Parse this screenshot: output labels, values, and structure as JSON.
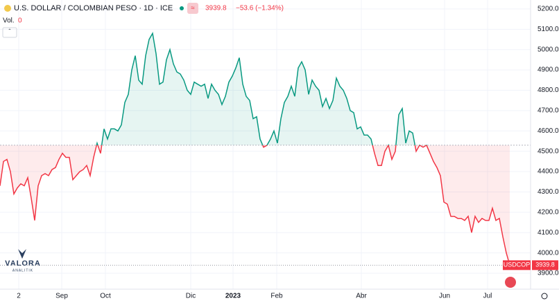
{
  "chart_data": {
    "type": "line",
    "title": "U.S. DOLLAR / COLOMBIAN PESO · 1D · ICE",
    "change": "−53.6 (−1.34%)",
    "volume_label": "Vol.",
    "volume": "0",
    "symbol": "USDCOP",
    "brand": "VALORA",
    "brand_sub": "ANALITIK",
    "baseline": 4530,
    "x": [
      0,
      1,
      2,
      3,
      4,
      5,
      6,
      7,
      8,
      9,
      10,
      11,
      12,
      13,
      14,
      15,
      16,
      17,
      18,
      19,
      20,
      21,
      22,
      23,
      24,
      25,
      26,
      27,
      28,
      29,
      30,
      31,
      32,
      33,
      34,
      35,
      36,
      37,
      38,
      39,
      40,
      41,
      42,
      43,
      44,
      45,
      46,
      47,
      48,
      49,
      50,
      51,
      52,
      53,
      54,
      55,
      56,
      57,
      58,
      59,
      60,
      61,
      62,
      63,
      64,
      65,
      66,
      67,
      68,
      69,
      70,
      71,
      72,
      73,
      74,
      75,
      76,
      77,
      78,
      79,
      80,
      81,
      82,
      83,
      84,
      85,
      86,
      87,
      88,
      89,
      90,
      91,
      92,
      93,
      94,
      95,
      96,
      97,
      98,
      99,
      100,
      101,
      102,
      103,
      104,
      105,
      106,
      107,
      108,
      109,
      110,
      111,
      112,
      113,
      114,
      115,
      116,
      117,
      118,
      119,
      120,
      121,
      122,
      123,
      124,
      125,
      126,
      127,
      128,
      129,
      130,
      131,
      132,
      133,
      134,
      135,
      136,
      137,
      138,
      139,
      140,
      141,
      142,
      143,
      144,
      145,
      146,
      147
    ],
    "series": [
      {
        "name": "USDCOP",
        "color_up": "#089981",
        "color_down": "#f23645",
        "values": [
          4330,
          4450,
          4460,
          4400,
          4290,
          4320,
          4340,
          4330,
          4370,
          4270,
          4160,
          4330,
          4380,
          4390,
          4380,
          4410,
          4420,
          4460,
          4490,
          4470,
          4470,
          4360,
          4380,
          4400,
          4410,
          4430,
          4380,
          4470,
          4540,
          4490,
          4610,
          4560,
          4610,
          4610,
          4600,
          4630,
          4740,
          4780,
          4900,
          4970,
          4850,
          4830,
          4970,
          5050,
          5080,
          4980,
          4830,
          4840,
          4950,
          5000,
          4930,
          4890,
          4880,
          4850,
          4800,
          4780,
          4840,
          4830,
          4820,
          4830,
          4760,
          4830,
          4800,
          4780,
          4730,
          4770,
          4840,
          4870,
          4910,
          4960,
          4830,
          4770,
          4750,
          4660,
          4670,
          4560,
          4520,
          4530,
          4560,
          4600,
          4540,
          4660,
          4740,
          4770,
          4820,
          4770,
          4910,
          4940,
          4900,
          4780,
          4850,
          4820,
          4800,
          4720,
          4760,
          4710,
          4750,
          4860,
          4820,
          4800,
          4760,
          4700,
          4690,
          4610,
          4620,
          4580,
          4580,
          4560,
          4490,
          4430,
          4430,
          4500,
          4530,
          4460,
          4500,
          4680,
          4710,
          4540,
          4600,
          4590,
          4500,
          4530,
          4520,
          4530,
          4490,
          4450,
          4420,
          4380,
          4250,
          4240,
          4180,
          4180,
          4170,
          4170,
          4160,
          4180,
          4100,
          4180,
          4150,
          4170,
          4160,
          4160,
          4220,
          4160,
          4170,
          4080,
          4000,
          3939.8
        ]
      }
    ],
    "xlim": [
      0,
      153
    ],
    "xticks": [
      {
        "value": 5.4,
        "label": "2"
      },
      {
        "value": 17.8,
        "label": "Sep"
      },
      {
        "value": 30.4,
        "label": "Oct"
      },
      {
        "value": 55,
        "label": "Dic"
      },
      {
        "value": 67.2,
        "label": "2023"
      },
      {
        "value": 79.8,
        "label": "Feb"
      },
      {
        "value": 104.2,
        "label": "Abr"
      },
      {
        "value": 128.2,
        "label": "Jun"
      },
      {
        "value": 140.6,
        "label": "Jul"
      }
    ],
    "ylim": [
      3815,
      5244
    ],
    "yticks": [
      {
        "value": 3900,
        "label": "3900.0"
      },
      {
        "value": 4000,
        "label": "4000.0"
      },
      {
        "value": 4100,
        "label": "4100.0"
      },
      {
        "value": 4200,
        "label": "4200.0"
      },
      {
        "value": 4300,
        "label": "4300.0"
      },
      {
        "value": 4400,
        "label": "4400.0"
      },
      {
        "value": 4500,
        "label": "4500.0"
      },
      {
        "value": 4600,
        "label": "4600.0"
      },
      {
        "value": 4700,
        "label": "4700.0"
      },
      {
        "value": 4800,
        "label": "4800.0"
      },
      {
        "value": 4900,
        "label": "4900.0"
      },
      {
        "value": 5000,
        "label": "5000.0"
      },
      {
        "value": 5100,
        "label": "5100.0"
      },
      {
        "value": 5200,
        "label": "5200.0"
      }
    ],
    "grid": true
  }
}
